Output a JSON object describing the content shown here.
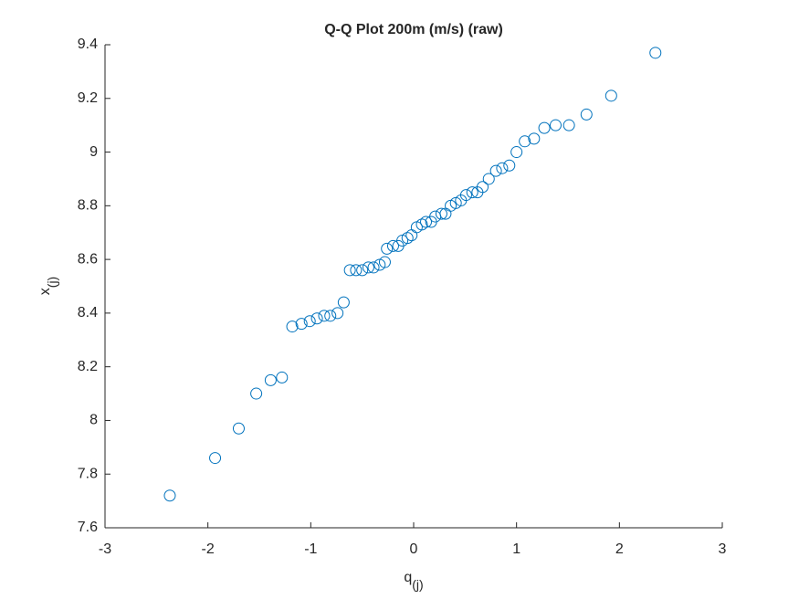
{
  "chart_data": {
    "type": "scatter",
    "title": "Q-Q Plot 200m (m/s) (raw)",
    "x_label": {
      "text": "q",
      "sub": "(j)"
    },
    "y_label": {
      "text": "x",
      "sub": "(j)"
    },
    "color": "#0072BD",
    "grid": false,
    "xlim": [
      -3,
      3
    ],
    "ylim": [
      7.6,
      9.4
    ],
    "xticks": [
      -3,
      -2,
      -1,
      0,
      1,
      2,
      3
    ],
    "yticks": [
      7.6,
      7.8,
      8,
      8.2,
      8.4,
      8.6,
      8.8,
      9,
      9.2,
      9.4
    ],
    "x": [
      -2.37,
      -1.93,
      -1.7,
      -1.53,
      -1.39,
      -1.28,
      -1.18,
      -1.09,
      -1.01,
      -0.94,
      -0.87,
      -0.81,
      -0.74,
      -0.68,
      -0.62,
      -0.56,
      -0.5,
      -0.44,
      -0.39,
      -0.33,
      -0.28,
      -0.26,
      -0.2,
      -0.15,
      -0.11,
      -0.06,
      -0.02,
      0.03,
      0.08,
      0.12,
      0.17,
      0.21,
      0.27,
      0.31,
      0.36,
      0.41,
      0.46,
      0.51,
      0.57,
      0.62,
      0.67,
      0.73,
      0.8,
      0.86,
      0.93,
      1.0,
      1.08,
      1.17,
      1.27,
      1.38,
      1.51,
      1.68,
      1.92,
      2.35
    ],
    "values": [
      7.72,
      7.86,
      7.97,
      8.1,
      8.15,
      8.16,
      8.35,
      8.36,
      8.37,
      8.38,
      8.39,
      8.39,
      8.4,
      8.44,
      8.56,
      8.56,
      8.56,
      8.57,
      8.57,
      8.58,
      8.59,
      8.64,
      8.65,
      8.65,
      8.67,
      8.68,
      8.69,
      8.72,
      8.73,
      8.74,
      8.74,
      8.76,
      8.77,
      8.77,
      8.8,
      8.81,
      8.82,
      8.84,
      8.85,
      8.85,
      8.87,
      8.9,
      8.93,
      8.94,
      8.95,
      9.0,
      9.04,
      9.05,
      9.09,
      9.1,
      9.1,
      9.14,
      9.21,
      9.37
    ]
  }
}
